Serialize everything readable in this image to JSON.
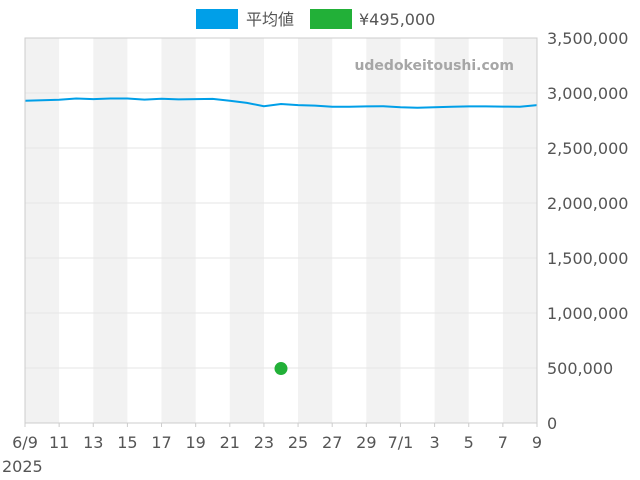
{
  "chart_data": {
    "type": "line",
    "watermark": "udedokeitoushi.com",
    "year_label": "2025",
    "x_ticks": [
      "6/9",
      "11",
      "13",
      "15",
      "17",
      "19",
      "21",
      "23",
      "25",
      "27",
      "29",
      "7/1",
      "3",
      "5",
      "7",
      "9"
    ],
    "y_ticks": [
      "0",
      "500,000",
      "1,000,000",
      "1,500,000",
      "2,000,000",
      "2,500,000",
      "3,000,000",
      "3,500,000"
    ],
    "ylim": [
      0,
      3500000
    ],
    "grid": true,
    "legend_position": "top",
    "series": [
      {
        "name": "平均値",
        "kind": "line",
        "color": "#009fe8",
        "points": [
          [
            "2025-06-09",
            2930000
          ],
          [
            "2025-06-10",
            2935000
          ],
          [
            "2025-06-11",
            2938000
          ],
          [
            "2025-06-12",
            2950000
          ],
          [
            "2025-06-13",
            2945000
          ],
          [
            "2025-06-14",
            2950000
          ],
          [
            "2025-06-15",
            2950000
          ],
          [
            "2025-06-16",
            2940000
          ],
          [
            "2025-06-17",
            2948000
          ],
          [
            "2025-06-18",
            2942000
          ],
          [
            "2025-06-19",
            2945000
          ],
          [
            "2025-06-20",
            2946000
          ],
          [
            "2025-06-21",
            2930000
          ],
          [
            "2025-06-22",
            2910000
          ],
          [
            "2025-06-23",
            2880000
          ],
          [
            "2025-06-24",
            2900000
          ],
          [
            "2025-06-25",
            2890000
          ],
          [
            "2025-06-26",
            2885000
          ],
          [
            "2025-06-27",
            2875000
          ],
          [
            "2025-06-28",
            2875000
          ],
          [
            "2025-06-29",
            2878000
          ],
          [
            "2025-06-30",
            2880000
          ],
          [
            "2025-07-01",
            2870000
          ],
          [
            "2025-07-02",
            2865000
          ],
          [
            "2025-07-03",
            2870000
          ],
          [
            "2025-07-04",
            2875000
          ],
          [
            "2025-07-05",
            2878000
          ],
          [
            "2025-07-06",
            2878000
          ],
          [
            "2025-07-07",
            2876000
          ],
          [
            "2025-07-08",
            2875000
          ],
          [
            "2025-07-09",
            2890000
          ]
        ]
      },
      {
        "name": "¥495,000",
        "kind": "point",
        "color": "#22b038",
        "points": [
          [
            "2025-06-24",
            495000
          ]
        ]
      }
    ]
  }
}
